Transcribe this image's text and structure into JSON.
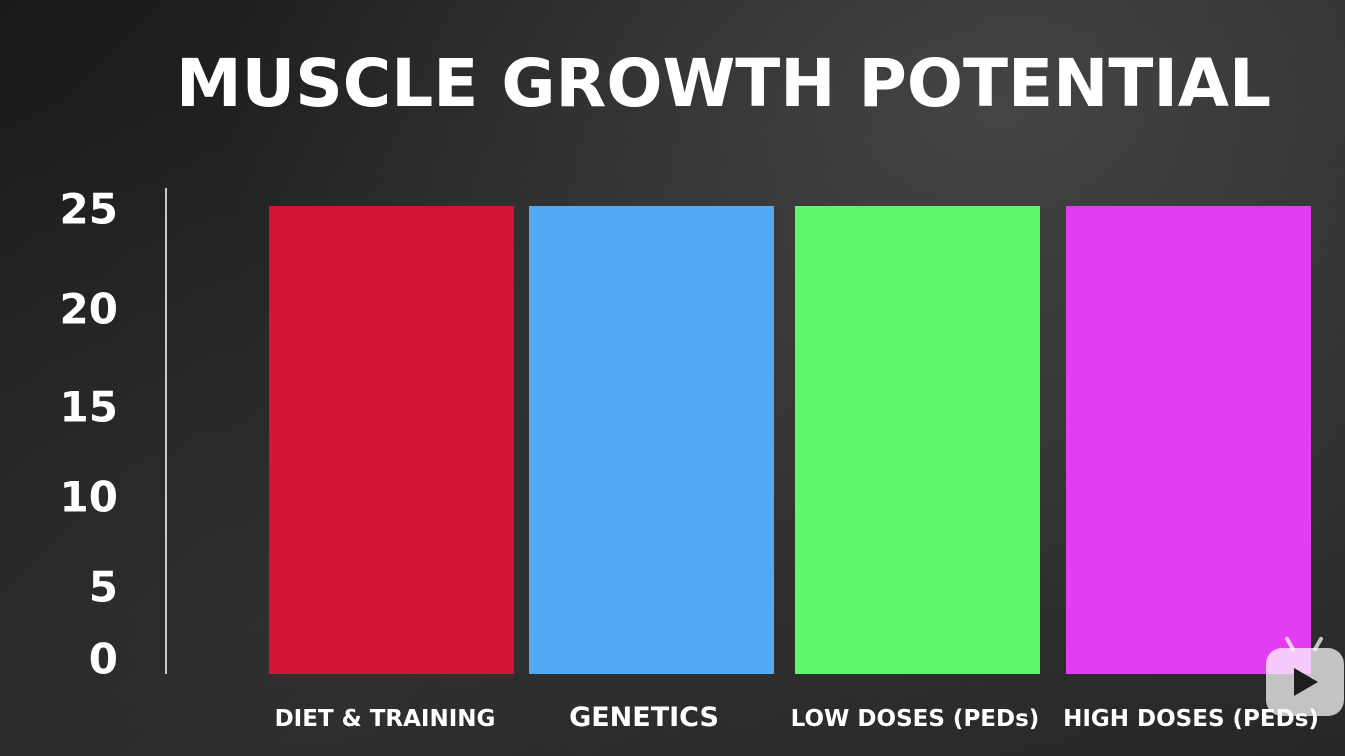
{
  "chart_data": {
    "type": "bar",
    "title": "MUSCLE GROWTH POTENTIAL",
    "xlabel": "",
    "ylabel": "",
    "ylim": [
      0,
      25
    ],
    "yticks": [
      "0",
      "5",
      "10",
      "15",
      "20",
      "25"
    ],
    "categories": [
      "DIET & TRAINING",
      "GENETICS",
      "LOW DOSES (PEDs)",
      "HIGH DOSES (PEDs)"
    ],
    "values": [
      25,
      25,
      25,
      25
    ],
    "colors": [
      "#d01634",
      "#52a9f4",
      "#5ef86e",
      "#e03ef0"
    ],
    "grid": false,
    "legend": "none"
  },
  "watermark": {
    "icon": "tv-play-icon"
  }
}
